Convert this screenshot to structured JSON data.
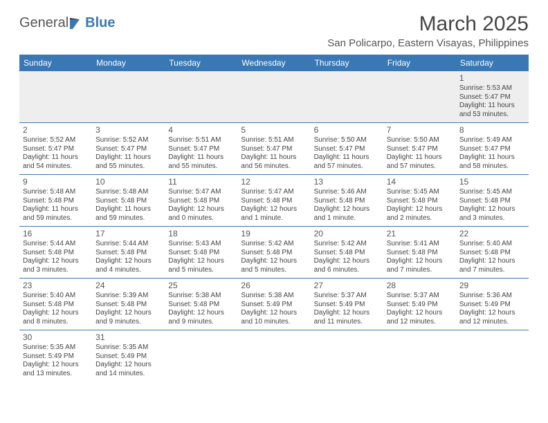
{
  "logo": {
    "text1": "General",
    "text2": "Blue"
  },
  "title": "March 2025",
  "location": "San Policarpo, Eastern Visayas, Philippines",
  "colors": {
    "header_bg": "#3a78b5",
    "header_text": "#ffffff",
    "border": "#3a78b5",
    "body_text": "#444444",
    "first_row_bg": "#eeeeee",
    "logo_gray": "#555555",
    "logo_blue": "#3a78b5"
  },
  "typography": {
    "title_fontsize": 30,
    "location_fontsize": 15,
    "header_fontsize": 12,
    "daynum_fontsize": 12,
    "cell_fontsize": 10
  },
  "columns": [
    "Sunday",
    "Monday",
    "Tuesday",
    "Wednesday",
    "Thursday",
    "Friday",
    "Saturday"
  ],
  "weeks": [
    [
      null,
      null,
      null,
      null,
      null,
      null,
      {
        "d": "1",
        "sr": "Sunrise: 5:53 AM",
        "ss": "Sunset: 5:47 PM",
        "dl": "Daylight: 11 hours and 53 minutes."
      }
    ],
    [
      {
        "d": "2",
        "sr": "Sunrise: 5:52 AM",
        "ss": "Sunset: 5:47 PM",
        "dl": "Daylight: 11 hours and 54 minutes."
      },
      {
        "d": "3",
        "sr": "Sunrise: 5:52 AM",
        "ss": "Sunset: 5:47 PM",
        "dl": "Daylight: 11 hours and 55 minutes."
      },
      {
        "d": "4",
        "sr": "Sunrise: 5:51 AM",
        "ss": "Sunset: 5:47 PM",
        "dl": "Daylight: 11 hours and 55 minutes."
      },
      {
        "d": "5",
        "sr": "Sunrise: 5:51 AM",
        "ss": "Sunset: 5:47 PM",
        "dl": "Daylight: 11 hours and 56 minutes."
      },
      {
        "d": "6",
        "sr": "Sunrise: 5:50 AM",
        "ss": "Sunset: 5:47 PM",
        "dl": "Daylight: 11 hours and 57 minutes."
      },
      {
        "d": "7",
        "sr": "Sunrise: 5:50 AM",
        "ss": "Sunset: 5:47 PM",
        "dl": "Daylight: 11 hours and 57 minutes."
      },
      {
        "d": "8",
        "sr": "Sunrise: 5:49 AM",
        "ss": "Sunset: 5:47 PM",
        "dl": "Daylight: 11 hours and 58 minutes."
      }
    ],
    [
      {
        "d": "9",
        "sr": "Sunrise: 5:48 AM",
        "ss": "Sunset: 5:48 PM",
        "dl": "Daylight: 11 hours and 59 minutes."
      },
      {
        "d": "10",
        "sr": "Sunrise: 5:48 AM",
        "ss": "Sunset: 5:48 PM",
        "dl": "Daylight: 11 hours and 59 minutes."
      },
      {
        "d": "11",
        "sr": "Sunrise: 5:47 AM",
        "ss": "Sunset: 5:48 PM",
        "dl": "Daylight: 12 hours and 0 minutes."
      },
      {
        "d": "12",
        "sr": "Sunrise: 5:47 AM",
        "ss": "Sunset: 5:48 PM",
        "dl": "Daylight: 12 hours and 1 minute."
      },
      {
        "d": "13",
        "sr": "Sunrise: 5:46 AM",
        "ss": "Sunset: 5:48 PM",
        "dl": "Daylight: 12 hours and 1 minute."
      },
      {
        "d": "14",
        "sr": "Sunrise: 5:45 AM",
        "ss": "Sunset: 5:48 PM",
        "dl": "Daylight: 12 hours and 2 minutes."
      },
      {
        "d": "15",
        "sr": "Sunrise: 5:45 AM",
        "ss": "Sunset: 5:48 PM",
        "dl": "Daylight: 12 hours and 3 minutes."
      }
    ],
    [
      {
        "d": "16",
        "sr": "Sunrise: 5:44 AM",
        "ss": "Sunset: 5:48 PM",
        "dl": "Daylight: 12 hours and 3 minutes."
      },
      {
        "d": "17",
        "sr": "Sunrise: 5:44 AM",
        "ss": "Sunset: 5:48 PM",
        "dl": "Daylight: 12 hours and 4 minutes."
      },
      {
        "d": "18",
        "sr": "Sunrise: 5:43 AM",
        "ss": "Sunset: 5:48 PM",
        "dl": "Daylight: 12 hours and 5 minutes."
      },
      {
        "d": "19",
        "sr": "Sunrise: 5:42 AM",
        "ss": "Sunset: 5:48 PM",
        "dl": "Daylight: 12 hours and 5 minutes."
      },
      {
        "d": "20",
        "sr": "Sunrise: 5:42 AM",
        "ss": "Sunset: 5:48 PM",
        "dl": "Daylight: 12 hours and 6 minutes."
      },
      {
        "d": "21",
        "sr": "Sunrise: 5:41 AM",
        "ss": "Sunset: 5:48 PM",
        "dl": "Daylight: 12 hours and 7 minutes."
      },
      {
        "d": "22",
        "sr": "Sunrise: 5:40 AM",
        "ss": "Sunset: 5:48 PM",
        "dl": "Daylight: 12 hours and 7 minutes."
      }
    ],
    [
      {
        "d": "23",
        "sr": "Sunrise: 5:40 AM",
        "ss": "Sunset: 5:48 PM",
        "dl": "Daylight: 12 hours and 8 minutes."
      },
      {
        "d": "24",
        "sr": "Sunrise: 5:39 AM",
        "ss": "Sunset: 5:48 PM",
        "dl": "Daylight: 12 hours and 9 minutes."
      },
      {
        "d": "25",
        "sr": "Sunrise: 5:38 AM",
        "ss": "Sunset: 5:48 PM",
        "dl": "Daylight: 12 hours and 9 minutes."
      },
      {
        "d": "26",
        "sr": "Sunrise: 5:38 AM",
        "ss": "Sunset: 5:49 PM",
        "dl": "Daylight: 12 hours and 10 minutes."
      },
      {
        "d": "27",
        "sr": "Sunrise: 5:37 AM",
        "ss": "Sunset: 5:49 PM",
        "dl": "Daylight: 12 hours and 11 minutes."
      },
      {
        "d": "28",
        "sr": "Sunrise: 5:37 AM",
        "ss": "Sunset: 5:49 PM",
        "dl": "Daylight: 12 hours and 12 minutes."
      },
      {
        "d": "29",
        "sr": "Sunrise: 5:36 AM",
        "ss": "Sunset: 5:49 PM",
        "dl": "Daylight: 12 hours and 12 minutes."
      }
    ],
    [
      {
        "d": "30",
        "sr": "Sunrise: 5:35 AM",
        "ss": "Sunset: 5:49 PM",
        "dl": "Daylight: 12 hours and 13 minutes."
      },
      {
        "d": "31",
        "sr": "Sunrise: 5:35 AM",
        "ss": "Sunset: 5:49 PM",
        "dl": "Daylight: 12 hours and 14 minutes."
      },
      null,
      null,
      null,
      null,
      null
    ]
  ]
}
